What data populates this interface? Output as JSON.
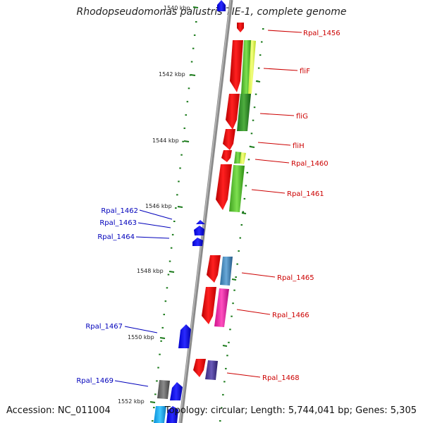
{
  "title": "Rhodopseudomonas palustris TIE-1, complete genome",
  "accession": "Accession: NC_011004",
  "topology": "Topology: circular; Length: 5,744,041 bp; Genes: 5,305",
  "colors": {
    "backbone": "#8a8a8a",
    "tick": "#1a7a1a",
    "label_right": "#cc0000",
    "label_left": "#0000bb"
  },
  "kbp_ticks": [
    {
      "label": "1540 kbp"
    },
    {
      "label": "1542 kbp"
    },
    {
      "label": "1544 kbp"
    },
    {
      "label": "1546 kbp"
    },
    {
      "label": "1548 kbp"
    },
    {
      "label": "1550 kbp"
    },
    {
      "label": "1552 kbp"
    }
  ],
  "genes_right": [
    {
      "name": "Rpal_1456"
    },
    {
      "name": "fliF"
    },
    {
      "name": "fliG"
    },
    {
      "name": "fliH"
    },
    {
      "name": "Rpal_1460"
    },
    {
      "name": "Rpal_1461"
    },
    {
      "name": "Rpal_1465"
    },
    {
      "name": "Rpal_1466"
    },
    {
      "name": "Rpal_1468"
    }
  ],
  "genes_left": [
    {
      "name": "Rpal_1462"
    },
    {
      "name": "Rpal_1463"
    },
    {
      "name": "Rpal_1464"
    },
    {
      "name": "Rpal_1467"
    },
    {
      "name": "Rpal_1469"
    }
  ]
}
